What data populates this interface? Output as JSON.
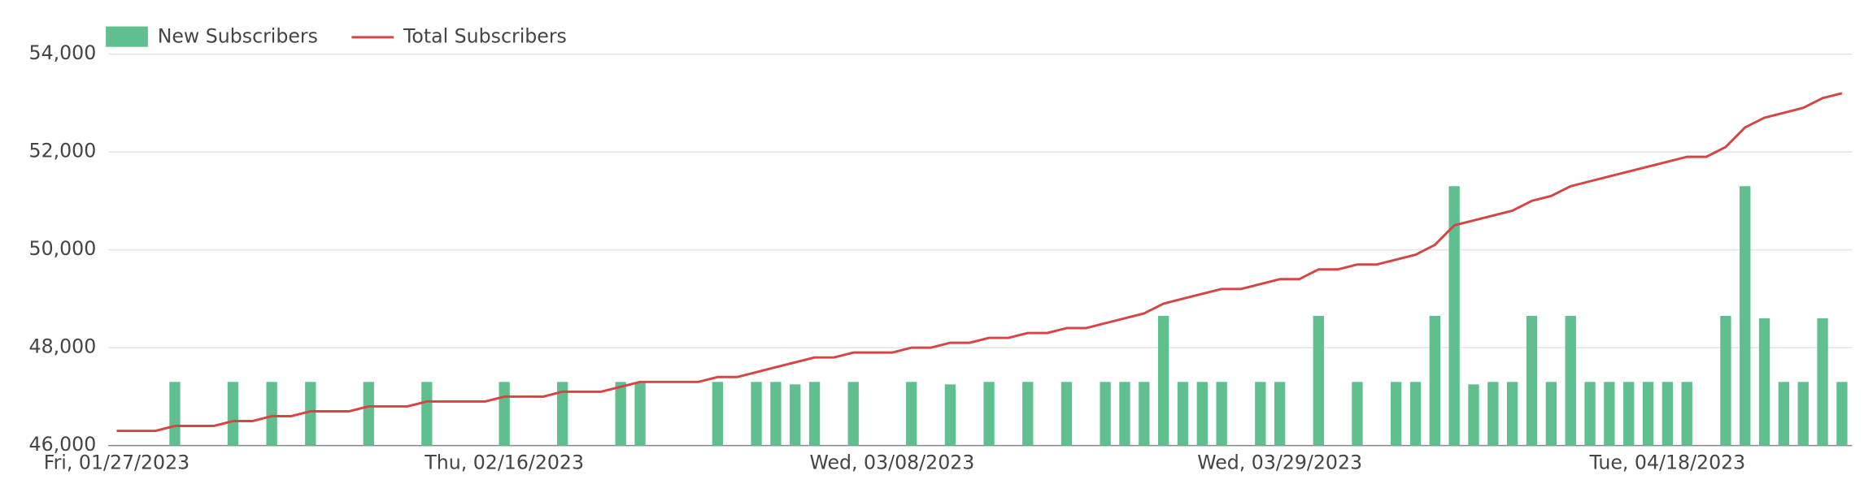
{
  "chart_data": {
    "type": "bar",
    "categories": [
      "Fri, 01/27/2023",
      null,
      null,
      null,
      null,
      null,
      null,
      null,
      null,
      null,
      null,
      null,
      null,
      null,
      null,
      null,
      null,
      null,
      null,
      null,
      "Thu, 02/16/2023",
      null,
      null,
      null,
      null,
      null,
      null,
      null,
      null,
      null,
      null,
      null,
      null,
      null,
      null,
      null,
      null,
      null,
      null,
      null,
      "Wed, 03/08/2023",
      null,
      null,
      null,
      null,
      null,
      null,
      null,
      null,
      null,
      null,
      null,
      null,
      null,
      null,
      null,
      null,
      null,
      null,
      null,
      "Wed, 03/29/2023",
      null,
      null,
      null,
      null,
      null,
      null,
      null,
      null,
      null,
      null,
      null,
      null,
      null,
      null,
      null,
      null,
      null,
      null,
      null,
      "Tue, 04/18/2023",
      null,
      null,
      null,
      null,
      null,
      null,
      null,
      null,
      null
    ],
    "series": [
      {
        "name": "New Subscribers",
        "type": "bar",
        "axis": "y2",
        "color": "#5fbf8f",
        "values": [
          0,
          0,
          0,
          1300,
          0,
          0,
          1300,
          0,
          1300,
          0,
          1300,
          0,
          0,
          1300,
          0,
          0,
          1300,
          0,
          0,
          0,
          1300,
          0,
          0,
          1300,
          0,
          0,
          1300,
          1300,
          0,
          0,
          0,
          1300,
          0,
          1300,
          1300,
          1250,
          1300,
          0,
          1300,
          0,
          0,
          1300,
          0,
          1250,
          0,
          1300,
          0,
          1300,
          0,
          1300,
          0,
          1300,
          1300,
          1300,
          2650,
          1300,
          1300,
          1300,
          0,
          1300,
          1300,
          0,
          2650,
          0,
          1300,
          0,
          1300,
          1300,
          2650,
          5300,
          1250,
          1300,
          1300,
          2650,
          1300,
          2650,
          1300,
          1300,
          1300,
          1300,
          1300,
          1300,
          0,
          2650,
          5300,
          2600,
          1300,
          1300,
          2600,
          1300
        ]
      },
      {
        "name": "Total Subscribers",
        "type": "line",
        "color": "#d64545",
        "values": [
          46300,
          46300,
          46300,
          46400,
          46400,
          46400,
          46500,
          46500,
          46600,
          46600,
          46700,
          46700,
          46700,
          46800,
          46800,
          46800,
          46900,
          46900,
          46900,
          46900,
          47000,
          47000,
          47000,
          47100,
          47100,
          47100,
          47200,
          47300,
          47300,
          47300,
          47300,
          47400,
          47400,
          47500,
          47600,
          47700,
          47800,
          47800,
          47900,
          47900,
          47900,
          48000,
          48000,
          48100,
          48100,
          48200,
          48200,
          48300,
          48300,
          48400,
          48400,
          48500,
          48600,
          48700,
          48900,
          49000,
          49100,
          49200,
          49200,
          49300,
          49400,
          49400,
          49600,
          49600,
          49700,
          49700,
          49800,
          49900,
          50100,
          50500,
          50600,
          50700,
          50800,
          51000,
          51100,
          51300,
          51400,
          51500,
          51600,
          51700,
          51800,
          51900,
          51900,
          52100,
          52500,
          52700,
          52800,
          52900,
          53100,
          53200
        ]
      }
    ],
    "ylim": [
      46000,
      54000
    ],
    "yticks": [
      {
        "value": 46000,
        "label": "46,000"
      },
      {
        "value": 48000,
        "label": "48,000"
      },
      {
        "value": 50000,
        "label": "50,000"
      },
      {
        "value": 52000,
        "label": "52,000"
      },
      {
        "value": 54000,
        "label": "54,000"
      }
    ],
    "y2lim": [
      0,
      8000
    ],
    "grid": true
  }
}
